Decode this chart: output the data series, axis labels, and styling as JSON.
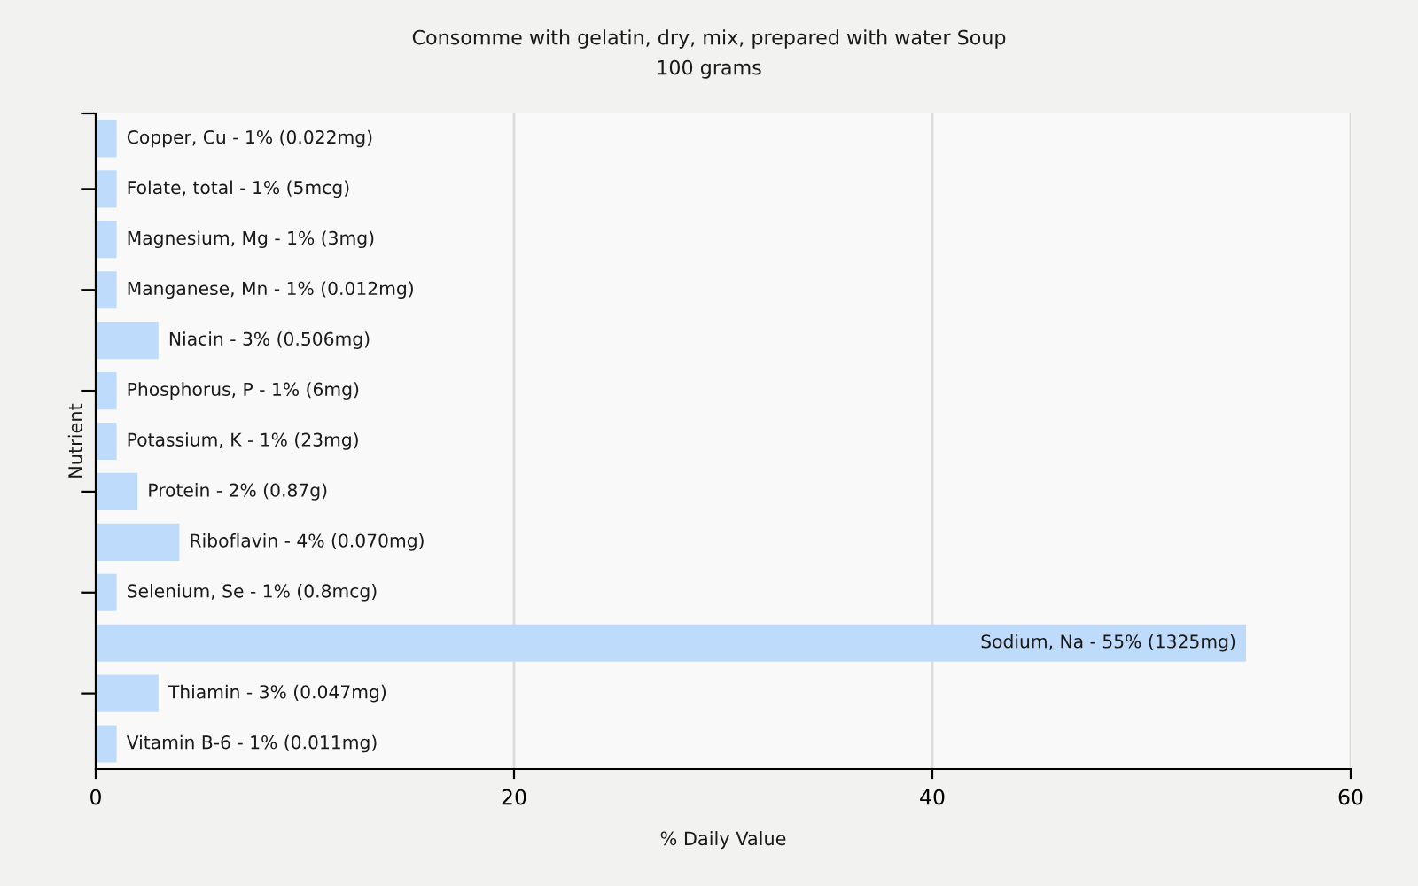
{
  "chart_data": {
    "type": "bar",
    "orientation": "horizontal",
    "title": "Consomme with gelatin, dry, mix, prepared with water Soup",
    "subtitle": "100 grams",
    "xlabel": "% Daily Value",
    "ylabel": "Nutrient",
    "categories": [
      "Copper, Cu -",
      "Folate, total -",
      "Magnesium, Mg -",
      "Manganese, Mn -",
      "Niacin -",
      "Phosphorus, P -",
      "Potassium, K -",
      "Protein -",
      "Riboflavin -",
      "Selenium, Se -",
      "Sodium, Na -",
      "Thiamin -",
      "Vitamin B-6 -"
    ],
    "values": [
      1,
      1,
      1,
      1,
      3,
      1,
      1,
      2,
      4,
      1,
      55,
      3,
      1
    ],
    "value_labels": [
      "1% (0.022mg)",
      "1% (5mcg)",
      "1% (3mg)",
      "1% (0.012mg)",
      "3% (0.506mg)",
      "1% (6mg)",
      "1% (23mg)",
      "2% (0.87g)",
      "4% (0.070mg)",
      "1% (0.8mcg)",
      "55% (1325mg)",
      "3% (0.047mg)",
      "1% (0.011mg)"
    ],
    "color": "#bfdbfc",
    "xlim": [
      0,
      60
    ],
    "xticks": [
      0,
      20,
      40,
      60
    ],
    "grid": "x",
    "tick_labels": "x"
  }
}
